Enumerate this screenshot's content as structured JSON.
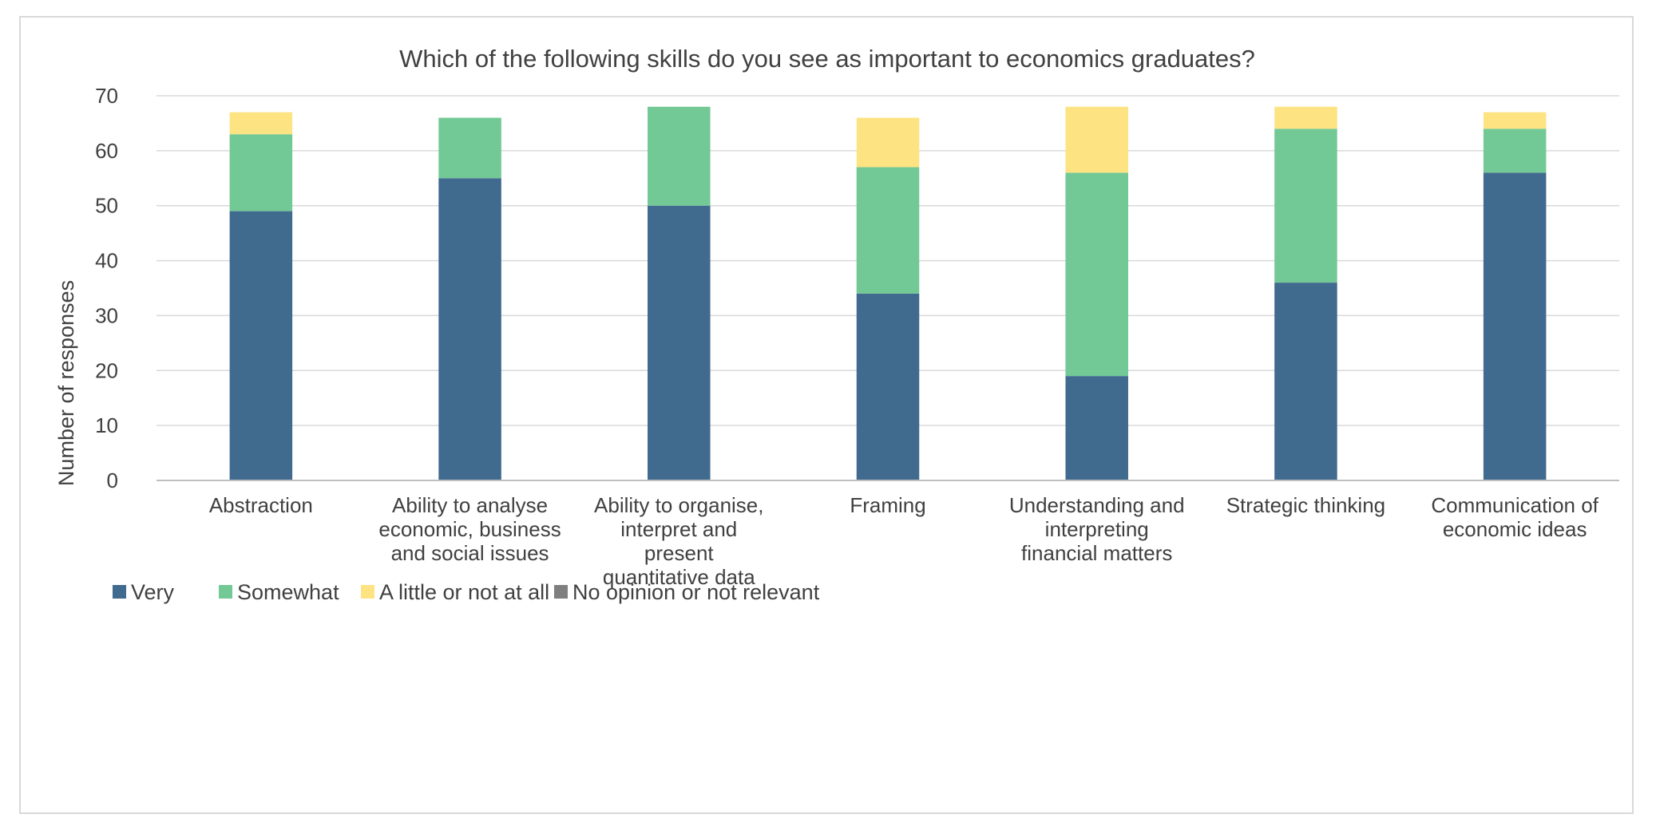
{
  "chart_data": {
    "type": "bar",
    "stacked": true,
    "title": "Which of the following skills do you see as important to economics graduates?",
    "xlabel": "",
    "ylabel": "Number of responses",
    "ylim": [
      0,
      70
    ],
    "yticks": [
      0,
      10,
      20,
      30,
      40,
      50,
      60,
      70
    ],
    "grid": true,
    "legend_position": "bottom-left",
    "categories": [
      [
        "Abstraction"
      ],
      [
        "Ability to analyse",
        "economic, business",
        "and social issues"
      ],
      [
        "Ability to organise,",
        "interpret and",
        "present",
        "quantitative data"
      ],
      [
        "Framing"
      ],
      [
        "Understanding and",
        "interpreting",
        "financial matters"
      ],
      [
        "Strategic thinking"
      ],
      [
        "Communication of",
        "economic ideas"
      ]
    ],
    "series": [
      {
        "name": "Very",
        "color": "#416a8f",
        "values": [
          49,
          55,
          50,
          34,
          19,
          36,
          56
        ]
      },
      {
        "name": "Somewhat",
        "color": "#72c995",
        "values": [
          14,
          11,
          18,
          23,
          37,
          28,
          8
        ]
      },
      {
        "name": "A little or not at all",
        "color": "#fee383",
        "values": [
          4,
          0,
          0,
          9,
          12,
          4,
          3
        ]
      },
      {
        "name": "No opinion or not relevant",
        "color": "#7f7f7f",
        "values": [
          0,
          0,
          0,
          0,
          0,
          0,
          0
        ]
      }
    ],
    "colors": {
      "gridline": "#d9d9d9",
      "axis": "#bfbfbf",
      "text": "#404040"
    }
  }
}
